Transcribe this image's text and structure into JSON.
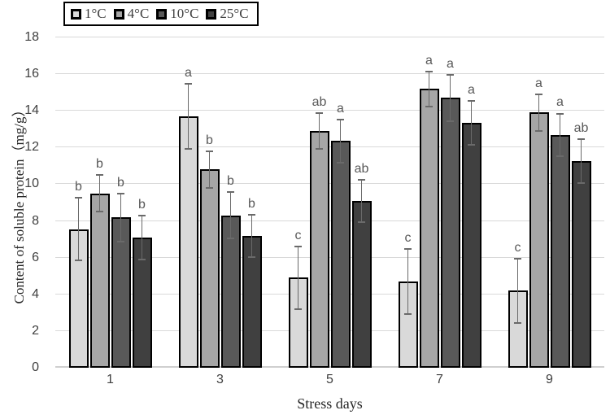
{
  "chart_data": {
    "type": "bar",
    "title": "",
    "xlabel": "Stress days",
    "ylabel": "Content of soluble protein（mg/g）",
    "ylim": [
      0,
      18
    ],
    "ytick_step": 2,
    "grid": true,
    "legend_position": "top-left",
    "categories": [
      "1",
      "3",
      "5",
      "7",
      "9"
    ],
    "series": [
      {
        "name": "1°C",
        "color": "#d9d9d9",
        "values": [
          7.55,
          13.7,
          4.9,
          4.7,
          4.2
        ],
        "errors": [
          1.75,
          1.8,
          1.75,
          1.8,
          1.8
        ],
        "letters": [
          "b",
          "a",
          "c",
          "c",
          "c"
        ]
      },
      {
        "name": "4°C",
        "color": "#a6a6a6",
        "values": [
          9.5,
          10.8,
          12.9,
          15.2,
          13.9
        ],
        "errors": [
          1.05,
          1.05,
          1.0,
          1.0,
          1.05
        ],
        "letters": [
          "b",
          "b",
          "ab",
          "a",
          "a"
        ]
      },
      {
        "name": "10°C",
        "color": "#595959",
        "values": [
          8.2,
          8.3,
          12.35,
          14.7,
          12.7
        ],
        "errors": [
          1.35,
          1.3,
          1.2,
          1.3,
          1.2
        ],
        "letters": [
          "b",
          "b",
          "a",
          "a",
          "a"
        ]
      },
      {
        "name": "25°C",
        "color": "#404040",
        "values": [
          7.1,
          7.2,
          9.1,
          13.35,
          11.25
        ],
        "errors": [
          1.25,
          1.2,
          1.2,
          1.25,
          1.25
        ],
        "letters": [
          "b",
          "b",
          "ab",
          "a",
          "ab"
        ]
      }
    ],
    "colors": {
      "gridline": "#d9d9d9",
      "bar_border": "#000000",
      "error_bar": "#6a6a6a",
      "letter": "#595959",
      "tick_label": "#404040"
    }
  }
}
